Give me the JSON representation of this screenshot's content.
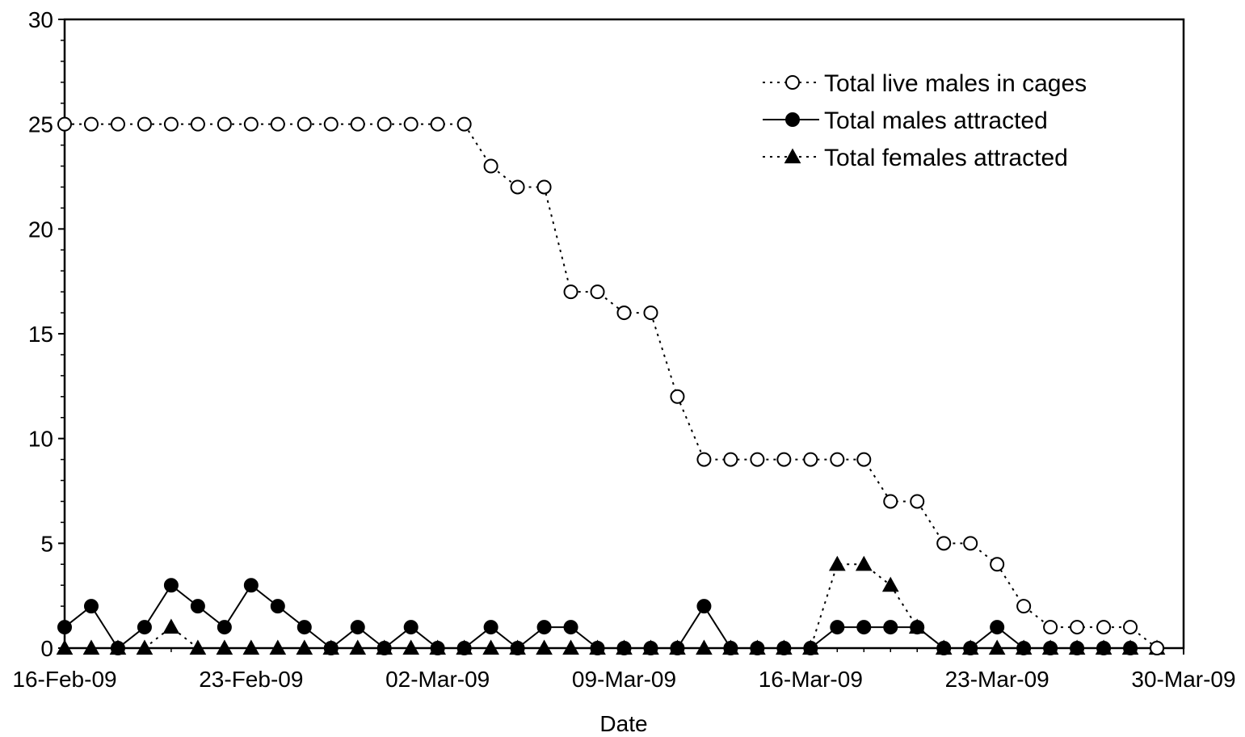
{
  "chart_data": {
    "type": "line",
    "title": "",
    "xlabel": "Date",
    "ylabel": "",
    "ylim": [
      0,
      30
    ],
    "yticks": [
      "0",
      "5",
      "10",
      "15",
      "20",
      "25",
      "30"
    ],
    "xlim": [
      "2009-02-16",
      "2009-03-30"
    ],
    "xticks": [
      {
        "date": "2009-02-16",
        "label": "16-Feb-09"
      },
      {
        "date": "2009-02-23",
        "label": "23-Feb-09"
      },
      {
        "date": "2009-03-02",
        "label": "02-Mar-09"
      },
      {
        "date": "2009-03-09",
        "label": "09-Mar-09"
      },
      {
        "date": "2009-03-16",
        "label": "16-Mar-09"
      },
      {
        "date": "2009-03-23",
        "label": "23-Mar-09"
      },
      {
        "date": "2009-03-30",
        "label": "30-Mar-09"
      }
    ],
    "x": [
      "2009-02-16",
      "2009-02-17",
      "2009-02-18",
      "2009-02-19",
      "2009-02-20",
      "2009-02-21",
      "2009-02-22",
      "2009-02-23",
      "2009-02-24",
      "2009-02-25",
      "2009-02-26",
      "2009-02-27",
      "2009-02-28",
      "2009-03-01",
      "2009-03-02",
      "2009-03-03",
      "2009-03-04",
      "2009-03-05",
      "2009-03-06",
      "2009-03-07",
      "2009-03-08",
      "2009-03-09",
      "2009-03-10",
      "2009-03-11",
      "2009-03-12",
      "2009-03-13",
      "2009-03-14",
      "2009-03-15",
      "2009-03-16",
      "2009-03-17",
      "2009-03-18",
      "2009-03-19",
      "2009-03-20",
      "2009-03-21",
      "2009-03-22",
      "2009-03-23",
      "2009-03-24",
      "2009-03-25",
      "2009-03-26",
      "2009-03-27",
      "2009-03-28",
      "2009-03-29"
    ],
    "series": [
      {
        "name": "Total live males in cages",
        "marker": "open-circle",
        "line": "dotted",
        "values": [
          25,
          25,
          25,
          25,
          25,
          25,
          25,
          25,
          25,
          25,
          25,
          25,
          25,
          25,
          25,
          25,
          23,
          22,
          22,
          17,
          17,
          16,
          16,
          12,
          9,
          9,
          9,
          9,
          9,
          9,
          9,
          7,
          7,
          5,
          5,
          4,
          2,
          1,
          1,
          1,
          1,
          0
        ]
      },
      {
        "name": "Total males attracted",
        "marker": "filled-circle",
        "line": "solid",
        "values": [
          1,
          2,
          0,
          1,
          3,
          2,
          1,
          3,
          2,
          1,
          0,
          1,
          0,
          1,
          0,
          0,
          1,
          0,
          1,
          1,
          0,
          0,
          0,
          0,
          2,
          0,
          0,
          0,
          0,
          1,
          1,
          1,
          1,
          0,
          0,
          1,
          0,
          0,
          0,
          0,
          0,
          0
        ]
      },
      {
        "name": "Total females attracted",
        "marker": "filled-triangle",
        "line": "dotted",
        "values": [
          0,
          0,
          0,
          0,
          1,
          0,
          0,
          0,
          0,
          0,
          0,
          0,
          0,
          0,
          0,
          0,
          0,
          0,
          0,
          0,
          0,
          0,
          0,
          0,
          0,
          0,
          0,
          0,
          0,
          4,
          4,
          3,
          1,
          0,
          0,
          0,
          0,
          0,
          0,
          0,
          0,
          0
        ]
      }
    ],
    "legend_position": "top-right",
    "grid": false
  }
}
